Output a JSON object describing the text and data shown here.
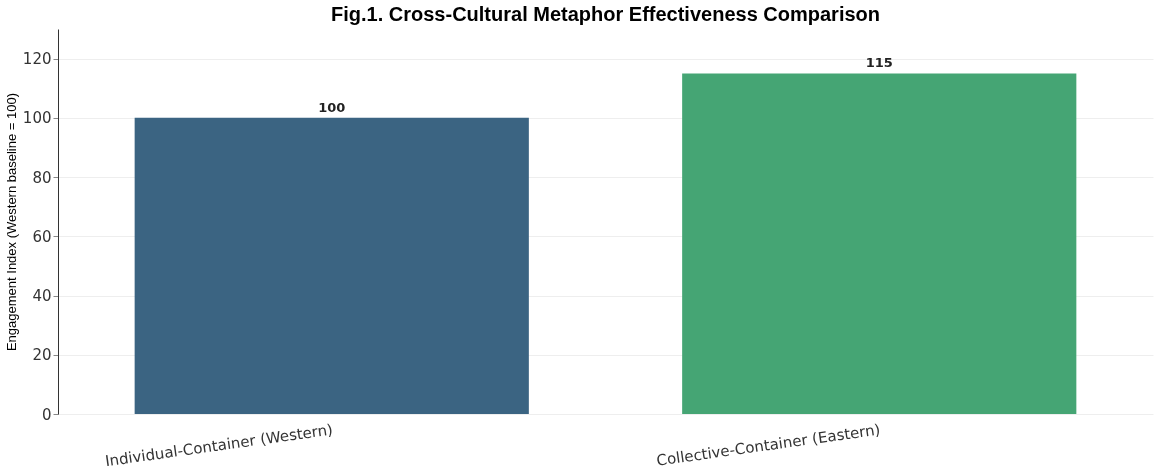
{
  "chart_data": {
    "type": "bar",
    "title": "Fig.1. Cross-Cultural Metaphor Effectiveness Comparison",
    "ylabel": "Engagement Index (Western baseline = 100)",
    "categories": [
      "Individual-Container (Western)",
      "Collective-Container (Eastern)"
    ],
    "values": [
      100,
      115
    ],
    "colors": [
      "#3b6482",
      "#45a574"
    ],
    "ylim": [
      0,
      130
    ],
    "yticks": [
      0,
      20,
      40,
      60,
      80,
      100,
      120
    ],
    "grid": "y",
    "data_labels": true
  }
}
